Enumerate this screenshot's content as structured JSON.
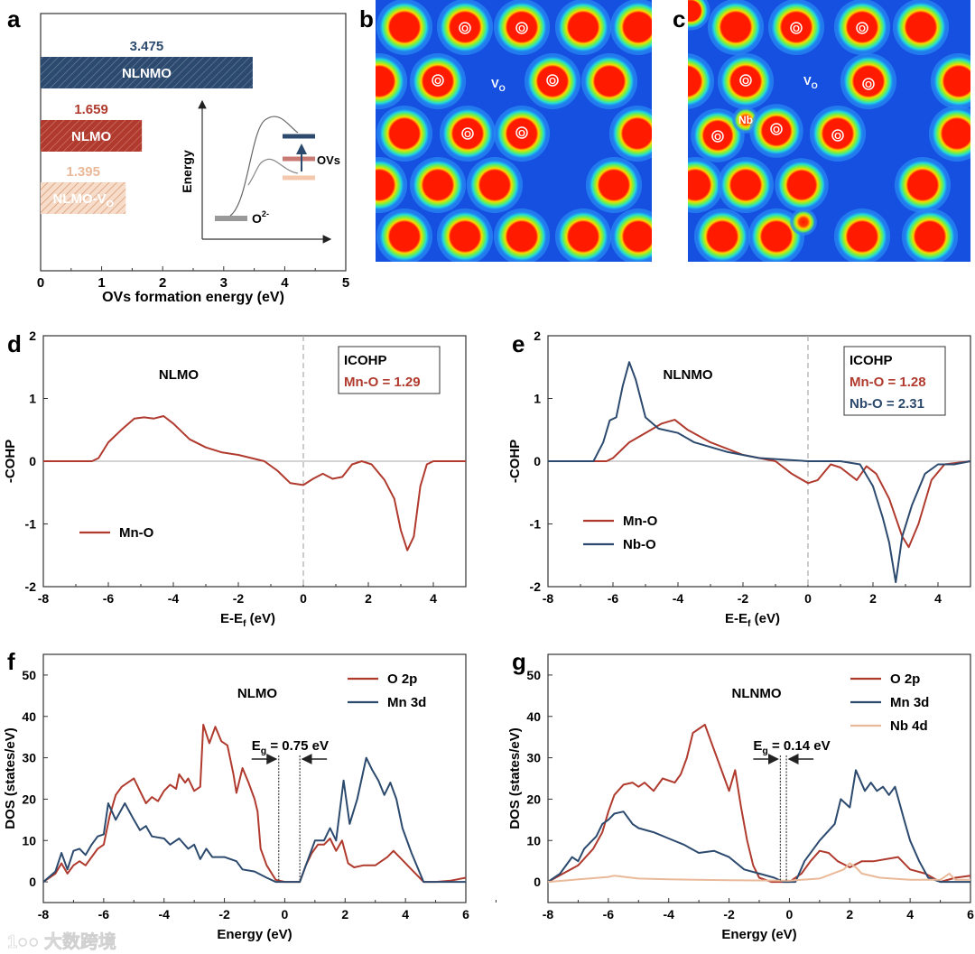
{
  "panel_labels": {
    "a": "a",
    "b": "b",
    "c": "c",
    "d": "d",
    "e": "e",
    "f": "f",
    "g": "g"
  },
  "watermark": "大数跨境",
  "colors": {
    "red": "#b03a2e",
    "blue": "#2c4a6e",
    "peach": "#e9b999",
    "grey": "#888888"
  },
  "chart_data": [
    {
      "id": "a",
      "type": "bar",
      "orientation": "horizontal",
      "categories": [
        "NLNMO",
        "NLMO",
        "NLMO-VO"
      ],
      "category_labels": [
        {
          "main": "NLNMO",
          "sub": ""
        },
        {
          "main": "NLMO",
          "sub": ""
        },
        {
          "main": "NLMO-V",
          "sub": "O"
        }
      ],
      "values": [
        3.475,
        1.659,
        1.395
      ],
      "value_labels": [
        "3.475",
        "1.659",
        "1.395"
      ],
      "bar_colors": [
        "#2c4a6e",
        "#b03a2e",
        "#e9b999"
      ],
      "xlabel": "OVs formation energy (eV)",
      "xlim": [
        0,
        5
      ],
      "xticks": [
        "0",
        "1",
        "2",
        "3",
        "4",
        "5"
      ],
      "inset": {
        "ylabel": "Energy",
        "ground_label": "O",
        "ground_sup": "2-",
        "level_label": "OVs"
      }
    },
    {
      "id": "b",
      "type": "heatmap",
      "description_labels": {
        "atom": "O",
        "vacancy": "V",
        "vacancy_sub": "O"
      }
    },
    {
      "id": "c",
      "type": "heatmap",
      "description_labels": {
        "atom": "O",
        "vacancy": "V",
        "vacancy_sub": "O",
        "dopant": "Nb"
      }
    },
    {
      "id": "d",
      "type": "line",
      "title": "NLMO",
      "xlabel": "E-E",
      "xlabel_sub": "f",
      "xlabel_unit": " (eV)",
      "ylabel": "-COHP",
      "xlim": [
        -8,
        5
      ],
      "ylim": [
        -2,
        2
      ],
      "xticks": [
        -8,
        -6,
        -4,
        -2,
        0,
        2,
        4
      ],
      "yticks": [
        -2,
        -1,
        0,
        1,
        2
      ],
      "annotation_box": {
        "title": "ICOHP",
        "lines": [
          {
            "text": "Mn-O = 1.29",
            "color": "#b03a2e"
          }
        ]
      },
      "legend_position": "bottom-left",
      "series": [
        {
          "name": "Mn-O",
          "color": "#b03a2e",
          "x": [
            -8,
            -6.5,
            -6.3,
            -6.0,
            -5.6,
            -5.2,
            -4.9,
            -4.6,
            -4.3,
            -4.0,
            -3.5,
            -3,
            -2.5,
            -2,
            -1.6,
            -1.2,
            -0.8,
            -0.4,
            0,
            0.3,
            0.6,
            0.9,
            1.2,
            1.5,
            1.8,
            2.1,
            2.5,
            2.8,
            3.0,
            3.2,
            3.4,
            3.6,
            3.8,
            4.0,
            5
          ],
          "y": [
            0,
            0,
            0.05,
            0.3,
            0.5,
            0.68,
            0.7,
            0.68,
            0.72,
            0.6,
            0.35,
            0.22,
            0.14,
            0.1,
            0.05,
            0,
            -0.15,
            -0.35,
            -0.38,
            -0.28,
            -0.2,
            -0.28,
            -0.25,
            -0.05,
            0,
            -0.05,
            -0.3,
            -0.6,
            -1.1,
            -1.42,
            -1.2,
            -0.4,
            -0.05,
            0,
            0
          ]
        }
      ]
    },
    {
      "id": "e",
      "type": "line",
      "title": "NLNMO",
      "xlabel": "E-E",
      "xlabel_sub": "f",
      "xlabel_unit": " (eV)",
      "ylabel": "-COHP",
      "xlim": [
        -8,
        5
      ],
      "ylim": [
        -2,
        2
      ],
      "xticks": [
        -8,
        -6,
        -4,
        -2,
        0,
        2,
        4
      ],
      "yticks": [
        -2,
        -1,
        0,
        1,
        2
      ],
      "annotation_box": {
        "title": "ICOHP",
        "lines": [
          {
            "text": "Mn-O = 1.28",
            "color": "#b03a2e"
          },
          {
            "text": "Nb-O = 2.31",
            "color": "#2c4a6e"
          }
        ]
      },
      "legend_position": "bottom-left",
      "series": [
        {
          "name": "Mn-O",
          "color": "#b03a2e",
          "x": [
            -8,
            -6.2,
            -6,
            -5.5,
            -5,
            -4.5,
            -4.1,
            -3.7,
            -3,
            -2,
            -1,
            -0.5,
            0,
            0.3,
            0.7,
            1,
            1.5,
            1.8,
            2.1,
            2.5,
            2.9,
            3.1,
            3.4,
            3.8,
            4.2,
            5
          ],
          "y": [
            0,
            0,
            0.05,
            0.3,
            0.45,
            0.6,
            0.66,
            0.5,
            0.3,
            0.1,
            0,
            -0.2,
            -0.35,
            -0.3,
            -0.05,
            -0.1,
            -0.3,
            -0.08,
            -0.2,
            -0.6,
            -1.2,
            -1.37,
            -1.0,
            -0.3,
            -0.05,
            0
          ]
        },
        {
          "name": "Nb-O",
          "color": "#2c4a6e",
          "x": [
            -8,
            -6.6,
            -6.3,
            -6.1,
            -5.9,
            -5.7,
            -5.5,
            -5.3,
            -5,
            -4.6,
            -4,
            -3.5,
            -2.5,
            -1.5,
            0,
            1,
            1.6,
            2,
            2.3,
            2.5,
            2.7,
            2.9,
            3.2,
            3.6,
            4.0,
            4.5,
            5
          ],
          "y": [
            0,
            0,
            0.3,
            0.65,
            0.7,
            1.2,
            1.58,
            1.3,
            0.7,
            0.52,
            0.45,
            0.3,
            0.15,
            0.05,
            0,
            0,
            -0.05,
            -0.4,
            -0.9,
            -1.3,
            -1.93,
            -1.2,
            -0.7,
            -0.2,
            -0.05,
            -0.05,
            0
          ]
        }
      ]
    },
    {
      "id": "f",
      "type": "line",
      "title": "NLMO",
      "xlabel": "Energy (eV)",
      "ylabel": "DOS (states/eV)",
      "xlim": [
        -8,
        6
      ],
      "ylim": [
        -5,
        55
      ],
      "xticks": [
        -8,
        -6,
        -4,
        -2,
        0,
        2,
        4,
        6
      ],
      "yticks": [
        0,
        10,
        20,
        30,
        40,
        50
      ],
      "band_gap": {
        "label": "E",
        "label_sub": "g",
        "label_value": " = 0.75 eV",
        "vbm": -0.2,
        "cbm": 0.5
      },
      "legend_position": "top-right",
      "series": [
        {
          "name": "O 2p",
          "color": "#b03a2e",
          "x": [
            -8,
            -7.6,
            -7.4,
            -7.2,
            -7,
            -6.8,
            -6.6,
            -6.2,
            -6,
            -5.8,
            -5.6,
            -5.4,
            -5.2,
            -5,
            -4.8,
            -4.6,
            -4.4,
            -4.2,
            -4,
            -3.8,
            -3.6,
            -3.5,
            -3.3,
            -3.2,
            -3,
            -2.8,
            -2.7,
            -2.5,
            -2.3,
            -2.1,
            -1.9,
            -1.7,
            -1.6,
            -1.4,
            -1.2,
            -1,
            -0.9,
            -0.8,
            -0.6,
            -0.3,
            0,
            0.5,
            0.7,
            0.9,
            1.1,
            1.3,
            1.5,
            1.7,
            1.9,
            2.1,
            2.3,
            2.6,
            3,
            3.4,
            3.6,
            3.8,
            4.2,
            4.6,
            5,
            5.5,
            6
          ],
          "y": [
            0,
            2,
            4.5,
            2,
            4,
            5,
            4,
            8,
            9,
            16,
            21,
            23,
            24,
            25,
            22,
            19,
            20.5,
            19.5,
            22,
            23.5,
            22.5,
            26,
            24,
            25,
            22,
            23,
            38,
            33.5,
            37.5,
            34,
            33,
            26,
            21.5,
            27.5,
            24,
            20,
            17,
            8,
            4,
            0.5,
            0,
            0,
            4,
            7,
            9,
            9,
            10.5,
            7.5,
            10,
            4.5,
            3.5,
            4,
            4,
            6,
            7.5,
            6,
            3,
            0,
            0,
            0.3,
            1
          ]
        },
        {
          "name": "Mn 3d",
          "color": "#2c4a6e",
          "x": [
            -8,
            -7.6,
            -7.4,
            -7.2,
            -7,
            -6.8,
            -6.6,
            -6.4,
            -6.2,
            -6,
            -5.85,
            -5.6,
            -5.3,
            -5,
            -4.8,
            -4.6,
            -4.4,
            -4,
            -3.8,
            -3.5,
            -3.2,
            -3,
            -2.8,
            -2.6,
            -2.4,
            -2,
            -1.6,
            -1.4,
            -1,
            -0.6,
            -0.3,
            0.5,
            0.7,
            1,
            1.3,
            1.5,
            1.7,
            1.95,
            2.15,
            2.4,
            2.7,
            2.9,
            3.1,
            3.3,
            3.5,
            3.7,
            3.9,
            4.2,
            4.6,
            6
          ],
          "y": [
            0,
            2.5,
            7,
            3,
            7.5,
            8,
            6.5,
            9,
            11,
            11.5,
            19,
            15,
            19,
            15,
            12.5,
            13.5,
            11,
            10.5,
            9,
            10.5,
            8,
            9,
            5.5,
            8,
            6,
            6,
            5,
            3,
            2.5,
            1,
            0,
            0,
            4,
            10,
            10,
            13,
            10,
            24.5,
            14,
            20,
            30,
            27,
            24.5,
            21,
            24,
            20,
            13,
            7,
            0,
            0
          ]
        }
      ]
    },
    {
      "id": "g",
      "type": "line",
      "title": "NLNMO",
      "xlabel": "Energy (eV)",
      "ylabel": "DOS (states/eV)",
      "xlim": [
        -8,
        6
      ],
      "ylim": [
        -5,
        55
      ],
      "xticks": [
        -8,
        -6,
        -4,
        -2,
        0,
        2,
        4,
        6
      ],
      "yticks": [
        0,
        10,
        20,
        30,
        40,
        50
      ],
      "band_gap": {
        "label": "E",
        "label_sub": "g",
        "label_value": " = 0.14 eV",
        "vbm": -0.3,
        "cbm": -0.1
      },
      "legend_position": "top-right",
      "series": [
        {
          "name": "O 2p",
          "color": "#b03a2e",
          "x": [
            -8,
            -7.5,
            -7,
            -6.5,
            -6.2,
            -6,
            -5.8,
            -5.5,
            -5.2,
            -5,
            -4.8,
            -4.5,
            -4.2,
            -3.8,
            -3.6,
            -3.4,
            -3.2,
            -3,
            -2.8,
            -2.6,
            -2.4,
            -2.2,
            -2,
            -1.8,
            -1.6,
            -1.4,
            -1.2,
            -1,
            -0.6,
            0,
            0.4,
            0.7,
            1,
            1.3,
            1.6,
            2,
            2.4,
            2.8,
            3.2,
            3.6,
            4,
            4.5,
            5,
            5.5,
            6
          ],
          "y": [
            0,
            2,
            4,
            8,
            12,
            17,
            21,
            23.5,
            24,
            23,
            24,
            22,
            25,
            24,
            26,
            30,
            36,
            37,
            38,
            34,
            30,
            26,
            22,
            27,
            18,
            10,
            4,
            1,
            0,
            0,
            2,
            5,
            7.5,
            7,
            5,
            3.5,
            5,
            5,
            5.5,
            6,
            3,
            2,
            0,
            1,
            1.5
          ]
        },
        {
          "name": "Mn 3d",
          "color": "#2c4a6e",
          "x": [
            -8,
            -7.6,
            -7.2,
            -7,
            -6.8,
            -6.4,
            -6.2,
            -6,
            -5.8,
            -5.5,
            -5.2,
            -5,
            -4.5,
            -4,
            -3.5,
            -3,
            -2.5,
            -2,
            -1.5,
            -1,
            -0.5,
            -0.2,
            0.2,
            0.5,
            1,
            1.5,
            1.7,
            2,
            2.2,
            2.5,
            2.7,
            2.9,
            3.1,
            3.3,
            3.5,
            3.8,
            4,
            4.3,
            4.6,
            5,
            6
          ],
          "y": [
            0,
            2,
            6,
            5,
            8,
            11,
            14,
            15,
            16.5,
            17,
            14,
            13,
            12,
            10.5,
            9,
            7,
            7.5,
            6,
            3,
            2,
            1,
            0,
            0,
            5,
            10,
            14,
            20,
            18,
            27,
            22,
            24,
            22,
            23,
            21,
            23,
            15,
            10,
            5,
            1,
            0,
            0
          ]
        },
        {
          "name": "Nb 4d",
          "color": "#e9b999",
          "x": [
            -8,
            -6,
            -5.8,
            -5,
            -4,
            -2,
            0,
            1,
            1.8,
            2,
            2.2,
            2.4,
            3,
            4,
            5,
            5.3,
            5.5,
            6
          ],
          "y": [
            0,
            1.2,
            1.5,
            0.8,
            0.6,
            0.4,
            0.3,
            0.8,
            3,
            4.5,
            3.5,
            2,
            1,
            0.5,
            0.5,
            2,
            0.5,
            0.5
          ]
        }
      ]
    }
  ]
}
